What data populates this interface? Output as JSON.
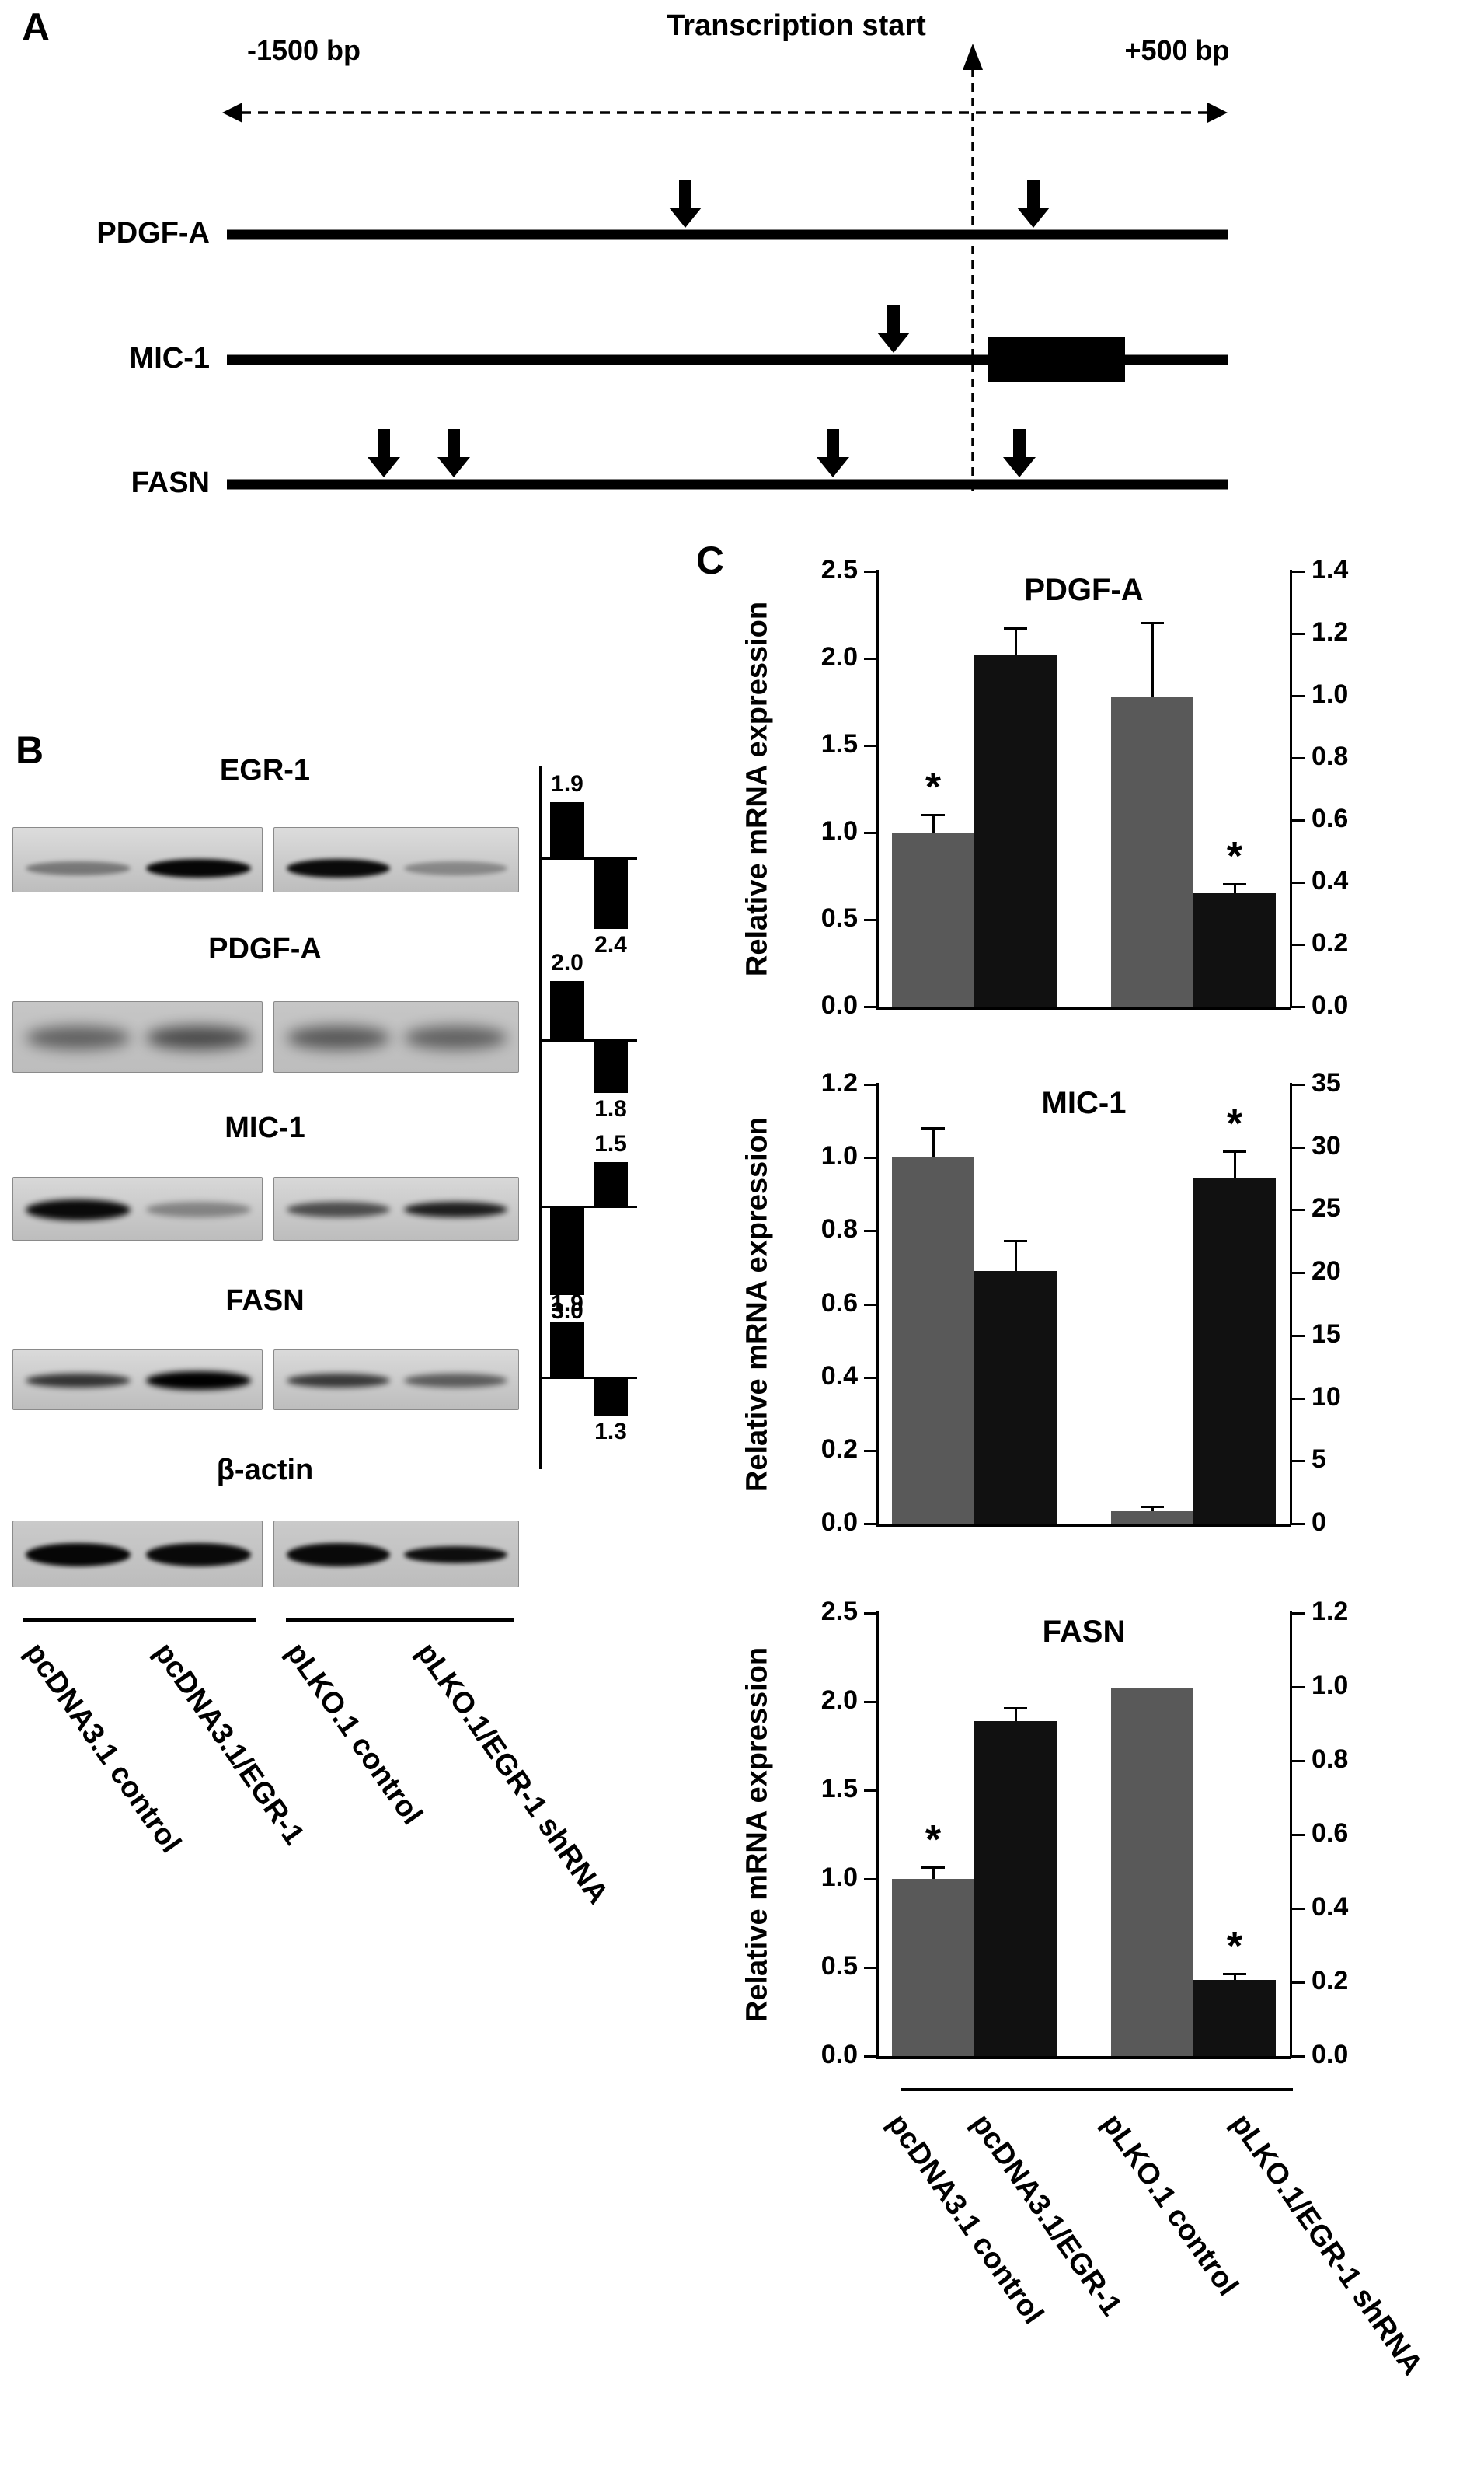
{
  "panels": {
    "a_label": "A",
    "b_label": "B",
    "c_label": "C"
  },
  "panelA": {
    "left_coord": "-1500 bp",
    "center_label": "Transcription start",
    "right_coord": "+500 bp",
    "genes": [
      "PDGF-A",
      "MIC-1",
      "FASN"
    ]
  },
  "panelB": {
    "rows": [
      {
        "title": "EGR-1",
        "lane_intensity": [
          0.4,
          0.97,
          0.95,
          0.32
        ],
        "band_height": 18,
        "blur": 3,
        "box_bg": "#dcdcdc",
        "band_y": 0.62,
        "fold": [
          {
            "value": "1.9",
            "dir": "up"
          },
          {
            "value": "2.4",
            "dir": "down"
          }
        ]
      },
      {
        "title": "PDGF-A",
        "lane_intensity": [
          0.5,
          0.62,
          0.55,
          0.5
        ],
        "band_height": 30,
        "blur": 9,
        "box_bg": "#c6c6c6",
        "band_y": 0.5,
        "fold": [
          {
            "value": "2.0",
            "dir": "up"
          },
          {
            "value": "1.8",
            "dir": "down"
          }
        ]
      },
      {
        "title": "MIC-1",
        "lane_intensity": [
          0.95,
          0.35,
          0.62,
          0.85
        ],
        "band_height": 20,
        "blur": 4,
        "box_bg": "#d8d8d8",
        "band_y": 0.5,
        "fold": [
          {
            "value": "3.0",
            "dir": "down"
          },
          {
            "value": "1.5",
            "dir": "up"
          }
        ]
      },
      {
        "title": "FASN",
        "lane_intensity": [
          0.75,
          1.0,
          0.72,
          0.55
        ],
        "band_height": 18,
        "blur": 4,
        "box_bg": "#dadada",
        "band_y": 0.5,
        "fold": [
          {
            "value": "1.9",
            "dir": "up"
          },
          {
            "value": "1.3",
            "dir": "down"
          }
        ]
      },
      {
        "title": "β-actin",
        "lane_intensity": [
          0.97,
          0.95,
          0.95,
          0.93
        ],
        "band_height": 22,
        "blur": 3,
        "box_bg": "#cacaca",
        "band_y": 0.5,
        "fold": []
      }
    ],
    "lane_labels": [
      "pcDNA3.1 control",
      "pcDNA3.1/EGR-1",
      "pLKO.1 control",
      "pLKO.1/EGR-1 shRNA"
    ]
  },
  "panelC": {
    "ylabel": "Relative mRNA expression",
    "x_labels": [
      "pcDNA3.1 control",
      "pcDNA3.1/EGR-1",
      "pLKO.1 control",
      "pLKO.1/EGR-1 shRNA"
    ]
  },
  "colors": {
    "gray_bar": "#595959",
    "black_bar": "#111111"
  },
  "chart_data": [
    {
      "type": "bar",
      "title": "PDGF-A",
      "ylabel": "Relative mRNA expression",
      "left_axis": {
        "min": 0,
        "max": 2.5,
        "ticks": [
          "0.0",
          "0.5",
          "1.0",
          "1.5",
          "2.0",
          "2.5"
        ]
      },
      "right_axis": {
        "min": 0,
        "max": 1.4,
        "ticks": [
          "0.0",
          "0.2",
          "0.4",
          "0.6",
          "0.8",
          "1.0",
          "1.2",
          "1.4"
        ]
      },
      "categories": [
        "pcDNA3.1 control",
        "pcDNA3.1/EGR-1",
        "pLKO.1 control",
        "pLKO.1/EGR-1 shRNA"
      ],
      "bars": [
        {
          "category": "pcDNA3.1 control",
          "axis": "left",
          "value": 1.0,
          "value_left": 1.0,
          "err": 0.1,
          "color": "gray",
          "star": true
        },
        {
          "category": "pcDNA3.1/EGR-1",
          "axis": "left",
          "value": 2.02,
          "value_left": 2.02,
          "err": 0.15,
          "color": "black",
          "star": false
        },
        {
          "category": "pLKO.1 control",
          "axis": "right",
          "value": 1.0,
          "value_left": 1.78,
          "err": 0.42,
          "color": "gray",
          "star": false
        },
        {
          "category": "pLKO.1/EGR-1 shRNA",
          "axis": "right",
          "value": 0.36,
          "value_left": 0.65,
          "err": 0.05,
          "color": "black",
          "star": true
        }
      ]
    },
    {
      "type": "bar",
      "title": "MIC-1",
      "ylabel": "Relative mRNA expression",
      "left_axis": {
        "min": 0,
        "max": 1.2,
        "ticks": [
          "0.0",
          "0.2",
          "0.4",
          "0.6",
          "0.8",
          "1.0",
          "1.2"
        ]
      },
      "right_axis": {
        "min": 0,
        "max": 35,
        "ticks": [
          "0",
          "5",
          "10",
          "15",
          "20",
          "25",
          "30",
          "35"
        ]
      },
      "categories": [
        "pcDNA3.1 control",
        "pcDNA3.1/EGR-1",
        "pLKO.1 control",
        "pLKO.1/EGR-1 shRNA"
      ],
      "bars": [
        {
          "category": "pcDNA3.1 control",
          "axis": "left",
          "value": 1.0,
          "value_left": 1.0,
          "err": 0.08,
          "color": "gray",
          "star": false
        },
        {
          "category": "pcDNA3.1/EGR-1",
          "axis": "left",
          "value": 0.69,
          "value_left": 0.69,
          "err": 0.08,
          "color": "black",
          "star": false
        },
        {
          "category": "pLKO.1 control",
          "axis": "right",
          "value": 1.0,
          "value_left": 0.035,
          "err": 0.01,
          "color": "gray",
          "star": false
        },
        {
          "category": "pLKO.1/EGR-1 shRNA",
          "axis": "right",
          "value": 27.5,
          "value_left": 0.945,
          "err": 0.07,
          "color": "black",
          "star": true
        }
      ]
    },
    {
      "type": "bar",
      "title": "FASN",
      "ylabel": "Relative mRNA expression",
      "left_axis": {
        "min": 0,
        "max": 2.5,
        "ticks": [
          "0.0",
          "0.5",
          "1.0",
          "1.5",
          "2.0",
          "2.5"
        ]
      },
      "right_axis": {
        "min": 0,
        "max": 1.2,
        "ticks": [
          "0.0",
          "0.2",
          "0.4",
          "0.6",
          "0.8",
          "1.0",
          "1.2"
        ]
      },
      "categories": [
        "pcDNA3.1 control",
        "pcDNA3.1/EGR-1",
        "pLKO.1 control",
        "pLKO.1/EGR-1 shRNA"
      ],
      "bars": [
        {
          "category": "pcDNA3.1 control",
          "axis": "left",
          "value": 1.0,
          "value_left": 1.0,
          "err": 0.06,
          "color": "gray",
          "star": true
        },
        {
          "category": "pcDNA3.1/EGR-1",
          "axis": "left",
          "value": 1.89,
          "value_left": 1.89,
          "err": 0.07,
          "color": "black",
          "star": false
        },
        {
          "category": "pLKO.1 control",
          "axis": "right",
          "value": 1.0,
          "value_left": 2.08,
          "err": 0,
          "color": "gray",
          "star": false
        },
        {
          "category": "pLKO.1/EGR-1 shRNA",
          "axis": "right",
          "value": 0.2,
          "value_left": 0.43,
          "err": 0.03,
          "color": "black",
          "star": true
        }
      ]
    }
  ]
}
